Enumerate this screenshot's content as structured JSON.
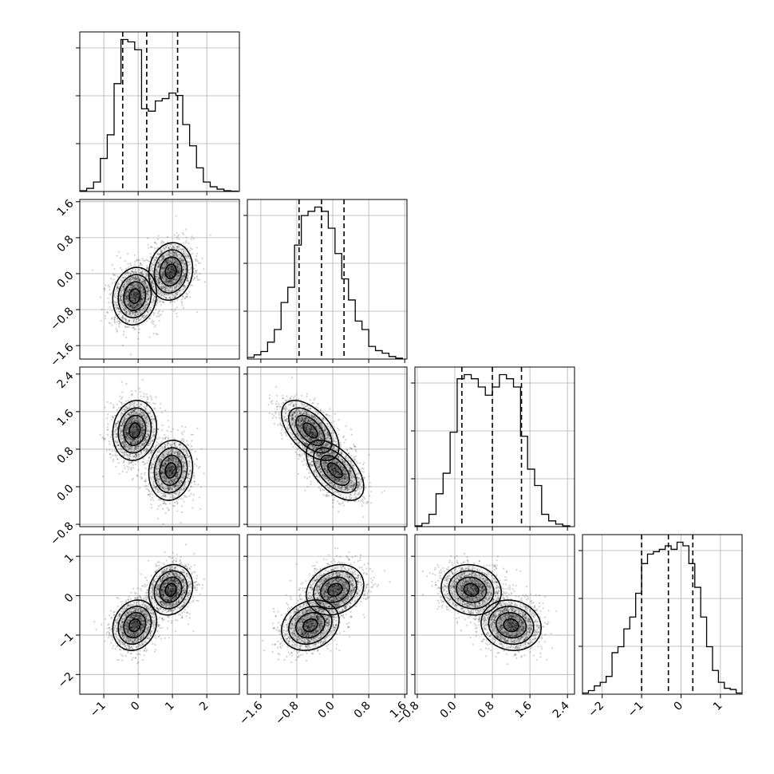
{
  "chart_data": {
    "type": "corner",
    "title": "",
    "grid": true,
    "parameters": [
      {
        "range": [
          -1.7,
          2.95
        ],
        "ticks": [
          -1,
          0,
          1,
          2
        ],
        "tick_labels": [
          "−1",
          "0",
          "1",
          "2"
        ],
        "quantiles": [
          -0.45,
          0.25,
          1.15
        ],
        "hist": {
          "edges": [
            -1.7,
            -1.5,
            -1.3,
            -1.1,
            -0.9,
            -0.7,
            -0.5,
            -0.3,
            -0.1,
            0.1,
            0.3,
            0.5,
            0.7,
            0.9,
            1.1,
            1.3,
            1.5,
            1.7,
            1.9,
            2.1,
            2.3,
            2.5,
            2.7,
            2.9
          ],
          "counts": [
            0.1,
            0.4,
            1.2,
            4.2,
            7.2,
            13.7,
            19.3,
            19.0,
            18.0,
            10.5,
            10.2,
            11.5,
            11.8,
            12.5,
            12.2,
            8.5,
            5.8,
            3.0,
            1.2,
            0.6,
            0.3,
            0.1,
            0.05
          ]
        }
      },
      {
        "range": [
          -1.9,
          1.65
        ],
        "ticks": [
          -1.6,
          -0.8,
          0.0,
          0.8,
          1.6
        ],
        "tick_labels": [
          "−1.6",
          "−0.8",
          "0.0",
          "0.8",
          "1.6"
        ],
        "quantiles": [
          -0.75,
          -0.25,
          0.25
        ],
        "hist": {
          "edges": [
            -1.9,
            -1.75,
            -1.6,
            -1.45,
            -1.3,
            -1.15,
            -1.0,
            -0.85,
            -0.7,
            -0.55,
            -0.4,
            -0.25,
            -0.1,
            0.05,
            0.2,
            0.35,
            0.5,
            0.65,
            0.8,
            0.95,
            1.1,
            1.25,
            1.4,
            1.55
          ],
          "counts": [
            0.2,
            0.5,
            0.9,
            2.0,
            3.5,
            6.7,
            8.5,
            13.5,
            17.0,
            17.5,
            18.0,
            17.5,
            15.5,
            12.5,
            9.5,
            7.0,
            4.5,
            3.5,
            1.5,
            1.0,
            0.7,
            0.3,
            0.1
          ]
        }
      },
      {
        "range": [
          -0.85,
          2.55
        ],
        "ticks": [
          -0.8,
          0.0,
          0.8,
          1.6,
          2.4
        ],
        "tick_labels": [
          "−0.8",
          "0.0",
          "0.8",
          "1.6",
          "2.4"
        ],
        "quantiles": [
          0.15,
          0.8,
          1.42
        ],
        "hist": {
          "edges": [
            -0.85,
            -0.7,
            -0.55,
            -0.4,
            -0.25,
            -0.1,
            0.05,
            0.2,
            0.35,
            0.5,
            0.65,
            0.8,
            0.95,
            1.1,
            1.25,
            1.4,
            1.55,
            1.7,
            1.85,
            2.0,
            2.15,
            2.3,
            2.45
          ],
          "counts": [
            0.1,
            0.4,
            1.5,
            4.0,
            6.5,
            11.5,
            18.0,
            18.5,
            18.0,
            17.0,
            16.0,
            17.0,
            18.5,
            18.0,
            17.0,
            11.0,
            7.0,
            5.0,
            1.5,
            0.7,
            0.3,
            0.1
          ]
        }
      },
      {
        "range": [
          -2.5,
          1.55
        ],
        "ticks": [
          -2,
          -1,
          0,
          1
        ],
        "tick_labels": [
          "−2",
          "−1",
          "0",
          "1"
        ],
        "quantiles": [
          -1.0,
          -0.32,
          0.3
        ],
        "hist": {
          "edges": [
            -2.5,
            -2.35,
            -2.2,
            -2.05,
            -1.9,
            -1.75,
            -1.6,
            -1.45,
            -1.3,
            -1.15,
            -1.0,
            -0.85,
            -0.7,
            -0.55,
            -0.4,
            -0.25,
            -0.1,
            0.05,
            0.2,
            0.35,
            0.5,
            0.65,
            0.8,
            0.95,
            1.1,
            1.25,
            1.4,
            1.55
          ],
          "counts": [
            0.1,
            0.3,
            0.7,
            1.0,
            1.5,
            3.5,
            4.0,
            5.5,
            6.5,
            8.5,
            11.0,
            11.8,
            12.0,
            12.2,
            12.5,
            12.2,
            12.8,
            12.5,
            11.0,
            9.0,
            6.5,
            4.0,
            2.0,
            1.0,
            0.5,
            0.4,
            0.1
          ]
        }
      }
    ],
    "mixture": {
      "weights": [
        0.5,
        0.5
      ],
      "means": [
        [
          -0.1,
          -0.5,
          1.2,
          -0.75
        ],
        [
          0.95,
          0.05,
          0.35,
          0.15
        ]
      ],
      "sd": [
        0.32,
        0.32,
        0.32,
        0.32
      ],
      "correlations": {
        "1-0": [
          0.1,
          0.1
        ],
        "2-0": [
          0.1,
          0.1
        ],
        "2-1": [
          -0.55,
          -0.55
        ],
        "3-0": [
          0.15,
          0.15
        ],
        "3-1": [
          0.2,
          0.2
        ],
        "3-2": [
          -0.1,
          -0.1
        ]
      }
    },
    "contour_levels_sigma": [
      0.5,
      1.0,
      1.5,
      2.0
    ]
  }
}
